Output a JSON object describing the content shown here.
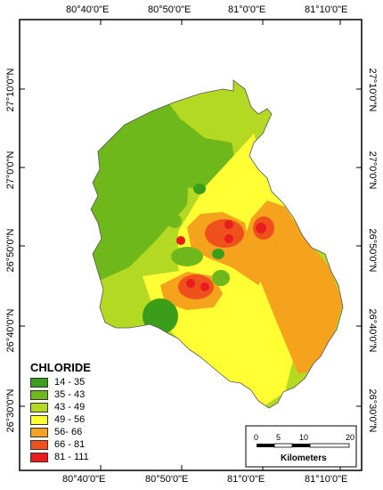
{
  "axes": {
    "top": [
      "80°40'0\"E",
      "80°50'0\"E",
      "81°0'0\"E",
      "81°10'0\"E"
    ],
    "bottom": [
      "80°40'0\"E",
      "80°50'0\"E",
      "81°0'0\"E",
      "81°10'0\"E"
    ],
    "left": [
      "27°10'0\"N",
      "27°0'0\"N",
      "26°50'0\"N",
      "26°40'0\"N",
      "26°30'0\"N"
    ],
    "right": [
      "27°10'0\"N",
      "27°0'0\"N",
      "26°50'0\"N",
      "26°40'0\"N",
      "26°30'0\"N"
    ]
  },
  "legend": {
    "title": "CHLORIDE",
    "items": [
      {
        "label": "14 - 35",
        "color": "#3a9e1a"
      },
      {
        "label": "35 - 43",
        "color": "#6fb81c"
      },
      {
        "label": "43 - 49",
        "color": "#b3d922"
      },
      {
        "label": "49 - 56",
        "color": "#ffff33"
      },
      {
        "label": "56- 66",
        "color": "#f5a31c"
      },
      {
        "label": "66 - 81",
        "color": "#f0501c"
      },
      {
        "label": "81 - 111",
        "color": "#e81c1c"
      }
    ]
  },
  "scale_bar": {
    "ticks": [
      "0",
      "5",
      "10",
      "20"
    ],
    "unit": "Kilometers"
  }
}
